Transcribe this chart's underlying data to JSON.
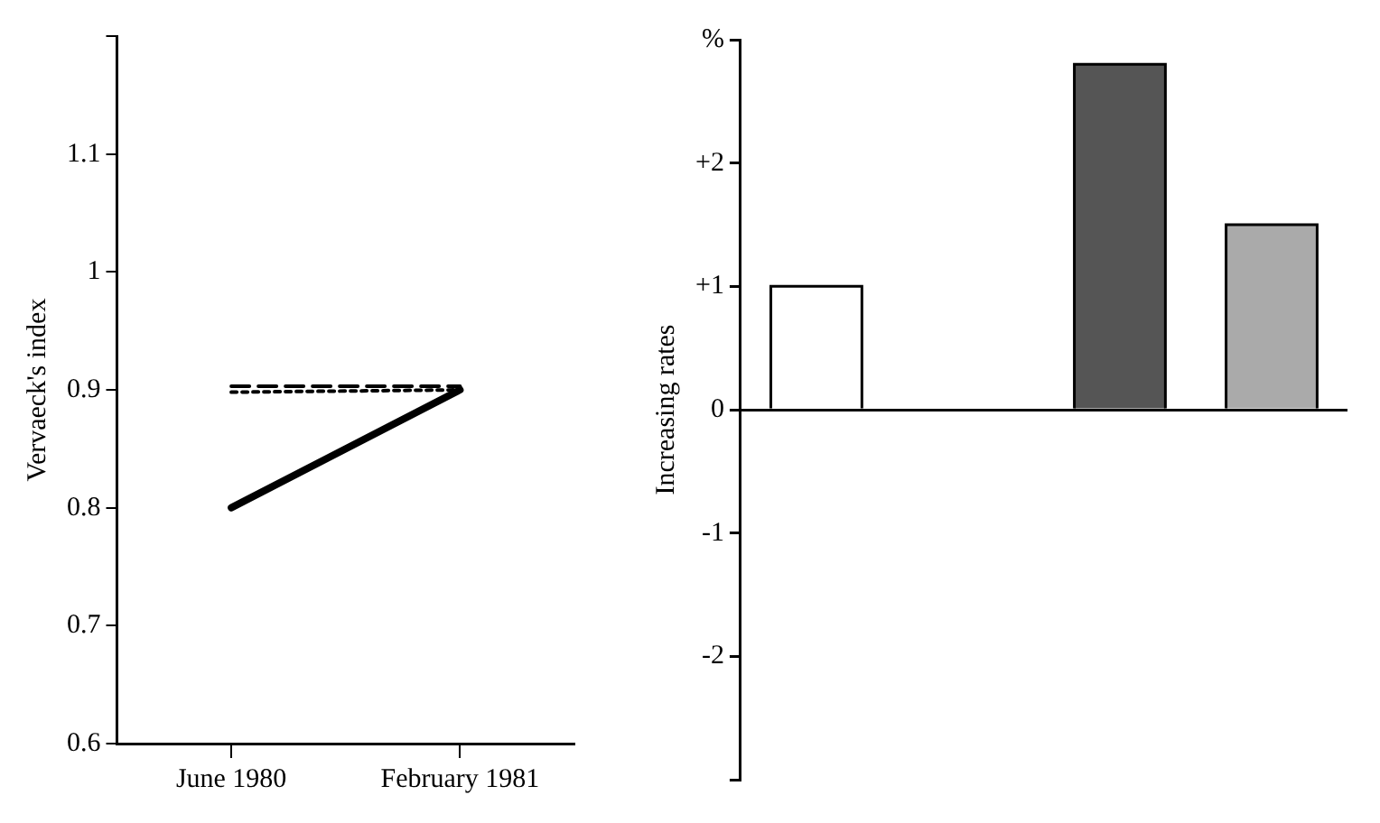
{
  "chart_data": [
    {
      "type": "line",
      "ylabel": "Vervaeck's index",
      "categories": [
        "June 1980",
        "February 1981"
      ],
      "marker": "none",
      "ylim": [
        0.6,
        1.2
      ],
      "yticks": [
        0.6,
        0.7,
        0.8,
        0.9,
        1.0,
        1.1,
        {
          "value": 1.2,
          "label": null
        }
      ],
      "legend": false,
      "series": [
        {
          "color": "#000000",
          "values": [
            0.8,
            0.9
          ],
          "line_style": "solid"
        },
        {
          "color": "#000000",
          "values": [
            0.903,
            0.903
          ],
          "line_style": "dashed"
        },
        {
          "color": "#000000",
          "values": [
            0.898,
            0.9
          ],
          "line_style": "dotted"
        }
      ]
    },
    {
      "type": "bar",
      "ylabel": "Increasing rates",
      "categories": [
        null,
        null,
        null,
        null
      ],
      "values": [
        1,
        0,
        2.8,
        1.5
      ],
      "colors": [
        "#ffffff",
        "#ffffff",
        "#555555",
        "#aaaaaa"
      ],
      "ylim": [
        -3,
        3
      ],
      "yticks": [
        {
          "value": 3,
          "label": "%"
        },
        {
          "value": 2,
          "label": "+2"
        },
        {
          "value": 1,
          "label": "+1"
        },
        0,
        -1,
        -2,
        {
          "value": -3,
          "label": null
        }
      ],
      "legend": false
    }
  ]
}
